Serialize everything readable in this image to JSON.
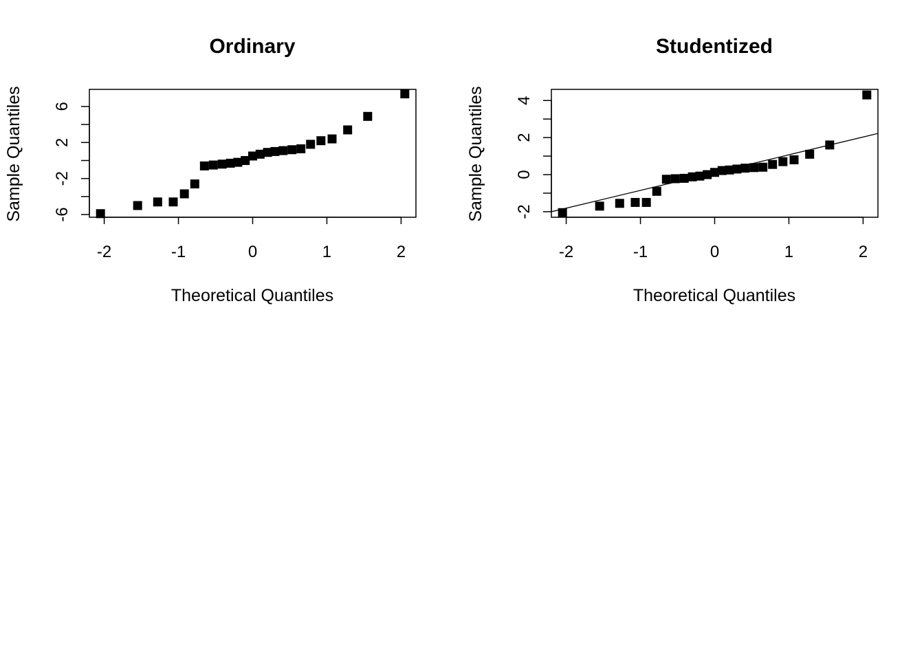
{
  "chart_data": [
    {
      "type": "scatter",
      "title": "Ordinary",
      "xlabel": "Theoretical Quantiles",
      "ylabel": "Sample Quantiles",
      "xlim": [
        -2.2,
        2.2
      ],
      "ylim": [
        -6.3,
        7.9
      ],
      "x_ticks": [
        -2,
        -1,
        0,
        1,
        2
      ],
      "y_ticks": [
        -6,
        -4,
        -2,
        0,
        2,
        4,
        6
      ],
      "y_tick_labels_shown": [
        -6,
        -2,
        2,
        6
      ],
      "reference_line": null,
      "points": {
        "x": [
          -2.05,
          -1.55,
          -1.28,
          -1.07,
          -0.92,
          -0.78,
          -0.65,
          -0.53,
          -0.41,
          -0.3,
          -0.2,
          -0.1,
          0.0,
          0.1,
          0.2,
          0.3,
          0.41,
          0.53,
          0.65,
          0.78,
          0.92,
          1.07,
          1.28,
          1.55,
          2.05
        ],
        "y": [
          -5.9,
          -5.0,
          -4.6,
          -4.6,
          -3.7,
          -2.6,
          -0.6,
          -0.5,
          -0.4,
          -0.3,
          -0.2,
          0.0,
          0.5,
          0.7,
          0.9,
          1.0,
          1.1,
          1.2,
          1.3,
          1.8,
          2.2,
          2.4,
          3.4,
          4.9,
          7.4
        ]
      }
    },
    {
      "type": "scatter",
      "title": "Studentized",
      "xlabel": "Theoretical Quantiles",
      "ylabel": "Sample Quantiles",
      "xlim": [
        -2.2,
        2.2
      ],
      "ylim": [
        -2.3,
        4.6
      ],
      "x_ticks": [
        -2,
        -1,
        0,
        1,
        2
      ],
      "y_ticks": [
        -2,
        -1,
        0,
        1,
        2,
        3,
        4
      ],
      "y_tick_labels_shown": [
        -2,
        0,
        2,
        4
      ],
      "reference_line": {
        "intercept": 0.11,
        "slope": 0.96
      },
      "points": {
        "x": [
          -2.05,
          -1.55,
          -1.28,
          -1.07,
          -0.92,
          -0.78,
          -0.65,
          -0.53,
          -0.41,
          -0.3,
          -0.2,
          -0.1,
          0.0,
          0.1,
          0.2,
          0.3,
          0.41,
          0.53,
          0.65,
          0.78,
          0.92,
          1.07,
          1.28,
          1.55,
          2.05
        ],
        "y": [
          -2.05,
          -1.7,
          -1.55,
          -1.5,
          -1.5,
          -0.9,
          -0.25,
          -0.22,
          -0.2,
          -0.12,
          -0.08,
          0.0,
          0.12,
          0.22,
          0.25,
          0.3,
          0.35,
          0.38,
          0.4,
          0.55,
          0.7,
          0.8,
          1.1,
          1.6,
          4.3
        ]
      }
    }
  ]
}
